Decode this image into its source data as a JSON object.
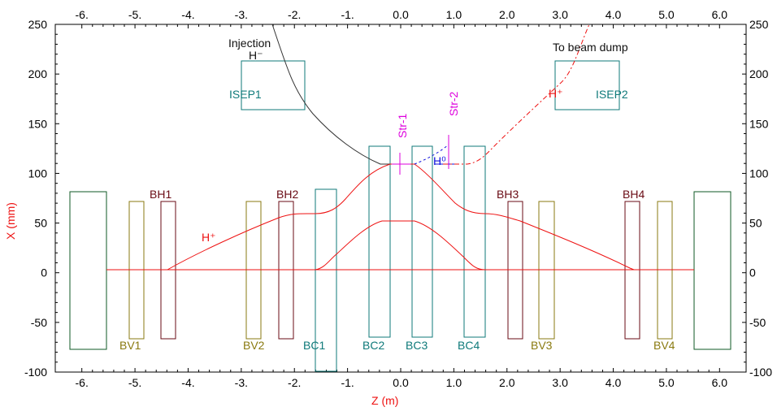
{
  "axes": {
    "x_title": "Z (m)",
    "y_title": "X (mm)",
    "x_ticks": [
      "-6.",
      "-5.",
      "-4.",
      "-3.",
      "-2.",
      "-1.",
      "0.0",
      "1.0",
      "2.0",
      "3.0",
      "4.0",
      "5.0",
      "6.0"
    ],
    "y_ticks": [
      "250",
      "200",
      "150",
      "100",
      "50",
      "0",
      "-50",
      "-100"
    ],
    "xlim": [
      -6.5,
      6.5
    ],
    "ylim": [
      -100,
      250
    ],
    "grid": false
  },
  "annotations": {
    "injection": "Injection",
    "h_minus": "H⁻",
    "to_beam_dump": "To beam dump",
    "h_plus_dump": "H⁺",
    "h_plus_left": "H⁺",
    "h_zero": "H⁰",
    "str1": "Str-1",
    "str2": "Str-2"
  },
  "magnets": [
    {
      "label": "ISEP1"
    },
    {
      "label": "ISEP2"
    },
    {
      "label": "BH1"
    },
    {
      "label": "BH2"
    },
    {
      "label": "BH3"
    },
    {
      "label": "BH4"
    },
    {
      "label": "BV1"
    },
    {
      "label": "BV2"
    },
    {
      "label": "BV3"
    },
    {
      "label": "BV4"
    },
    {
      "label": "BC1"
    },
    {
      "label": "BC2"
    },
    {
      "label": "BC3"
    },
    {
      "label": "BC4"
    }
  ],
  "colors": {
    "axis": "#000000",
    "trajectory": "#ee1111",
    "injection_line": "#333333",
    "bump_magnet": "#6a0b14",
    "vertical_magnet": "#8a7a10",
    "chicane_magnet": "#0f7a7a",
    "septum": "#0f7a7a",
    "outer_box": "#0f5a25",
    "stripper": "#dd00dd",
    "neutral": "#1010dd"
  }
}
